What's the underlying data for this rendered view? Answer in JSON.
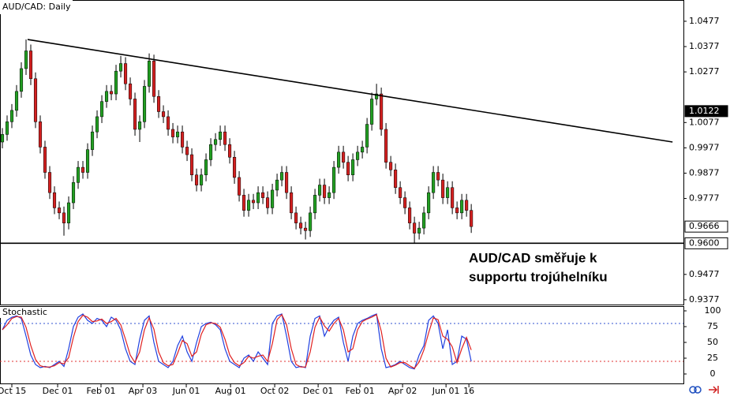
{
  "chart_data": [
    {
      "type": "candlestick",
      "title": "AUD/CAD: Daily",
      "annotation": [
        "AUD/CAD směřuje k",
        "supportu trojúhelníku"
      ],
      "xlim": [
        -0.5,
        143.8
      ],
      "xticks": [
        {
          "value": 2,
          "label": "Oct 15"
        },
        {
          "value": 11.67,
          "label": "Dec 01"
        },
        {
          "value": 20.83,
          "label": "Feb 01"
        },
        {
          "value": 29.67,
          "label": "Apr 03"
        },
        {
          "value": 38.83,
          "label": "Jun 01"
        },
        {
          "value": 48.17,
          "label": "Aug 01"
        },
        {
          "value": 57.5,
          "label": "Oct 02"
        },
        {
          "value": 66.67,
          "label": "Dec 01"
        },
        {
          "value": 75.5,
          "label": "Feb 01"
        },
        {
          "value": 84.5,
          "label": "Apr 02"
        },
        {
          "value": 93.67,
          "label": "Jun 01"
        },
        {
          "value": 98.5,
          "label": "16"
        }
      ],
      "ylim": [
        0.9358,
        1.0561
      ],
      "yticks": [
        1.0477,
        1.0377,
        1.0277,
        1.0077,
        0.9977,
        0.9877,
        0.9777,
        0.9477,
        0.9377
      ],
      "up_color": "#22a022",
      "down_color": "#d42020",
      "ohlc": [
        [
          1.0,
          1.0055,
          0.9975,
          1.003
        ],
        [
          1.003,
          1.0105,
          1.0005,
          1.008
        ],
        [
          1.008,
          1.015,
          1.0055,
          1.0125
        ],
        [
          1.0125,
          1.0225,
          1.01,
          1.02
        ],
        [
          1.02,
          1.0315,
          1.0175,
          1.029
        ],
        [
          1.029,
          1.0405,
          1.0265,
          1.036
        ],
        [
          1.036,
          1.0385,
          1.0225,
          1.025
        ],
        [
          1.025,
          1.0275,
          1.0055,
          1.008
        ],
        [
          1.008,
          1.0105,
          0.9955,
          0.998
        ],
        [
          0.998,
          1.0005,
          0.9855,
          0.988
        ],
        [
          0.988,
          0.9905,
          0.9775,
          0.98
        ],
        [
          0.98,
          0.9825,
          0.9715,
          0.974
        ],
        [
          0.974,
          0.9765,
          0.9695,
          0.972
        ],
        [
          0.972,
          0.9745,
          0.963,
          0.968
        ],
        [
          0.968,
          0.9785,
          0.9655,
          0.976
        ],
        [
          0.976,
          0.9865,
          0.9735,
          0.984
        ],
        [
          0.984,
          0.9925,
          0.9815,
          0.99
        ],
        [
          0.99,
          0.9925,
          0.9855,
          0.988
        ],
        [
          0.988,
          0.9995,
          0.9855,
          0.997
        ],
        [
          0.997,
          1.0065,
          0.9945,
          1.004
        ],
        [
          1.004,
          1.0125,
          1.0015,
          1.01
        ],
        [
          1.01,
          1.0185,
          1.0075,
          1.016
        ],
        [
          1.016,
          1.0225,
          1.0135,
          1.02
        ],
        [
          1.02,
          1.0225,
          1.0165,
          1.019
        ],
        [
          1.019,
          1.0305,
          1.0165,
          1.028
        ],
        [
          1.028,
          1.034,
          1.0255,
          1.031
        ],
        [
          1.031,
          1.0335,
          1.0205,
          1.023
        ],
        [
          1.023,
          1.0255,
          1.0145,
          1.017
        ],
        [
          1.017,
          1.0195,
          1.0025,
          1.005
        ],
        [
          1.005,
          1.0105,
          1.0,
          1.008
        ],
        [
          1.008,
          1.0245,
          1.0055,
          1.022
        ],
        [
          1.022,
          1.035,
          1.0195,
          1.032
        ],
        [
          1.032,
          1.0345,
          1.0155,
          1.018
        ],
        [
          1.018,
          1.0205,
          1.0095,
          1.012
        ],
        [
          1.012,
          1.0145,
          1.0075,
          1.01
        ],
        [
          1.01,
          1.0125,
          1.0025,
          1.005
        ],
        [
          1.005,
          1.0075,
          0.9995,
          1.002
        ],
        [
          1.002,
          1.0065,
          0.9995,
          1.004
        ],
        [
          1.004,
          1.0065,
          0.9955,
          0.998
        ],
        [
          0.998,
          1.0005,
          0.9925,
          0.995
        ],
        [
          0.995,
          0.9975,
          0.9845,
          0.987
        ],
        [
          0.987,
          0.9895,
          0.9805,
          0.983
        ],
        [
          0.983,
          0.9895,
          0.9805,
          0.987
        ],
        [
          0.987,
          0.9955,
          0.9845,
          0.993
        ],
        [
          0.993,
          1.0015,
          0.9905,
          0.999
        ],
        [
          0.999,
          1.0035,
          0.9965,
          1.001
        ],
        [
          1.001,
          1.0065,
          0.9985,
          1.004
        ],
        [
          1.004,
          1.0065,
          0.9965,
          0.999
        ],
        [
          0.999,
          1.0015,
          0.9915,
          0.994
        ],
        [
          0.994,
          0.9965,
          0.9835,
          0.986
        ],
        [
          0.986,
          0.9885,
          0.9765,
          0.979
        ],
        [
          0.979,
          0.9815,
          0.9705,
          0.973
        ],
        [
          0.973,
          0.9795,
          0.9705,
          0.977
        ],
        [
          0.977,
          0.9795,
          0.9735,
          0.976
        ],
        [
          0.976,
          0.9825,
          0.9735,
          0.98
        ],
        [
          0.98,
          0.9825,
          0.9755,
          0.978
        ],
        [
          0.978,
          0.9805,
          0.9715,
          0.974
        ],
        [
          0.974,
          0.9835,
          0.9715,
          0.981
        ],
        [
          0.981,
          0.9875,
          0.9785,
          0.985
        ],
        [
          0.985,
          0.9905,
          0.9825,
          0.988
        ],
        [
          0.988,
          0.9905,
          0.9775,
          0.98
        ],
        [
          0.98,
          0.9825,
          0.9695,
          0.972
        ],
        [
          0.972,
          0.9745,
          0.9655,
          0.968
        ],
        [
          0.968,
          0.9705,
          0.9635,
          0.966
        ],
        [
          0.966,
          0.9685,
          0.9615,
          0.965
        ],
        [
          0.965,
          0.9745,
          0.9625,
          0.972
        ],
        [
          0.972,
          0.9815,
          0.9695,
          0.979
        ],
        [
          0.979,
          0.9855,
          0.9765,
          0.983
        ],
        [
          0.983,
          0.9855,
          0.9755,
          0.978
        ],
        [
          0.978,
          0.9825,
          0.9755,
          0.98
        ],
        [
          0.98,
          0.9925,
          0.9775,
          0.99
        ],
        [
          0.99,
          0.9985,
          0.9875,
          0.996
        ],
        [
          0.996,
          0.9985,
          0.9895,
          0.992
        ],
        [
          0.992,
          0.9945,
          0.9845,
          0.987
        ],
        [
          0.987,
          0.9955,
          0.9845,
          0.993
        ],
        [
          0.993,
          0.9985,
          0.9905,
          0.996
        ],
        [
          0.996,
          1.0005,
          0.9935,
          0.998
        ],
        [
          0.998,
          1.0095,
          0.9955,
          1.007
        ],
        [
          1.007,
          1.0195,
          1.0045,
          1.017
        ],
        [
          1.017,
          1.023,
          1.0145,
          1.019
        ],
        [
          1.019,
          1.0215,
          1.0025,
          1.005
        ],
        [
          1.005,
          1.0075,
          0.9895,
          0.992
        ],
        [
          0.992,
          0.9945,
          0.9865,
          0.989
        ],
        [
          0.989,
          0.9915,
          0.9795,
          0.982
        ],
        [
          0.982,
          0.9845,
          0.9755,
          0.978
        ],
        [
          0.978,
          0.9805,
          0.9715,
          0.974
        ],
        [
          0.974,
          0.9765,
          0.9655,
          0.968
        ],
        [
          0.968,
          0.9705,
          0.96,
          0.964
        ],
        [
          0.964,
          0.9685,
          0.9615,
          0.966
        ],
        [
          0.966,
          0.9745,
          0.9635,
          0.972
        ],
        [
          0.972,
          0.9825,
          0.9695,
          0.98
        ],
        [
          0.98,
          0.9905,
          0.9775,
          0.988
        ],
        [
          0.988,
          0.9905,
          0.9825,
          0.985
        ],
        [
          0.985,
          0.9875,
          0.9755,
          0.978
        ],
        [
          0.978,
          0.9845,
          0.9755,
          0.982
        ],
        [
          0.982,
          0.9845,
          0.9715,
          0.974
        ],
        [
          0.974,
          0.9765,
          0.9695,
          0.972
        ],
        [
          0.972,
          0.9795,
          0.9695,
          0.977
        ],
        [
          0.977,
          0.9795,
          0.9705,
          0.973
        ],
        [
          0.973,
          0.9755,
          0.9641,
          0.9666
        ]
      ],
      "trendline": {
        "x": [
          5.33,
          141.5
        ],
        "y": [
          1.0405,
          1.0
        ]
      },
      "support_line": 0.96,
      "price_markers": [
        {
          "value": 1.0122,
          "label": "1.0122",
          "style": "filled"
        },
        {
          "value": 0.9666,
          "label": "0.9666",
          "style": "boxed"
        },
        {
          "value": 0.96,
          "label": "0.9600",
          "style": "boxed"
        }
      ]
    },
    {
      "type": "line",
      "title": "Stochastic",
      "ylim": [
        -15,
        107.5
      ],
      "yticks": [
        100,
        75,
        50,
        25,
        0
      ],
      "levels": [
        {
          "value": 80,
          "color": "#3050d0"
        },
        {
          "value": 20,
          "color": "#e03030"
        }
      ],
      "series": [
        {
          "color": "#2040e0",
          "values": [
            70,
            85,
            90,
            92,
            88,
            60,
            30,
            15,
            10,
            12,
            10,
            15,
            20,
            12,
            40,
            75,
            90,
            95,
            85,
            80,
            88,
            85,
            75,
            90,
            85,
            70,
            40,
            20,
            15,
            55,
            85,
            92,
            50,
            20,
            15,
            10,
            20,
            45,
            60,
            35,
            20,
            50,
            75,
            80,
            82,
            78,
            70,
            40,
            20,
            15,
            10,
            25,
            30,
            20,
            35,
            25,
            15,
            80,
            92,
            95,
            60,
            20,
            10,
            12,
            10,
            60,
            88,
            92,
            60,
            75,
            85,
            90,
            50,
            20,
            60,
            80,
            85,
            88,
            92,
            95,
            40,
            10,
            12,
            15,
            20,
            15,
            10,
            8,
            30,
            45,
            85,
            92,
            80,
            40,
            70,
            15,
            20,
            60,
            55,
            20
          ]
        },
        {
          "color": "#e02020",
          "values": [
            70,
            78,
            88,
            91,
            90,
            74,
            45,
            23,
            13,
            11,
            11,
            13,
            18,
            16,
            26,
            58,
            83,
            93,
            90,
            83,
            84,
            87,
            80,
            83,
            88,
            78,
            55,
            30,
            18,
            35,
            70,
            89,
            71,
            35,
            18,
            13,
            15,
            33,
            53,
            48,
            28,
            35,
            63,
            78,
            81,
            80,
            74,
            55,
            30,
            18,
            13,
            18,
            28,
            25,
            28,
            30,
            20,
            48,
            86,
            94,
            78,
            40,
            15,
            11,
            11,
            35,
            74,
            90,
            76,
            68,
            80,
            88,
            70,
            35,
            40,
            70,
            83,
            87,
            90,
            94,
            68,
            25,
            11,
            14,
            18,
            18,
            13,
            9,
            19,
            38,
            65,
            89,
            86,
            60,
            55,
            43,
            18,
            40,
            58,
            38
          ]
        }
      ]
    }
  ]
}
